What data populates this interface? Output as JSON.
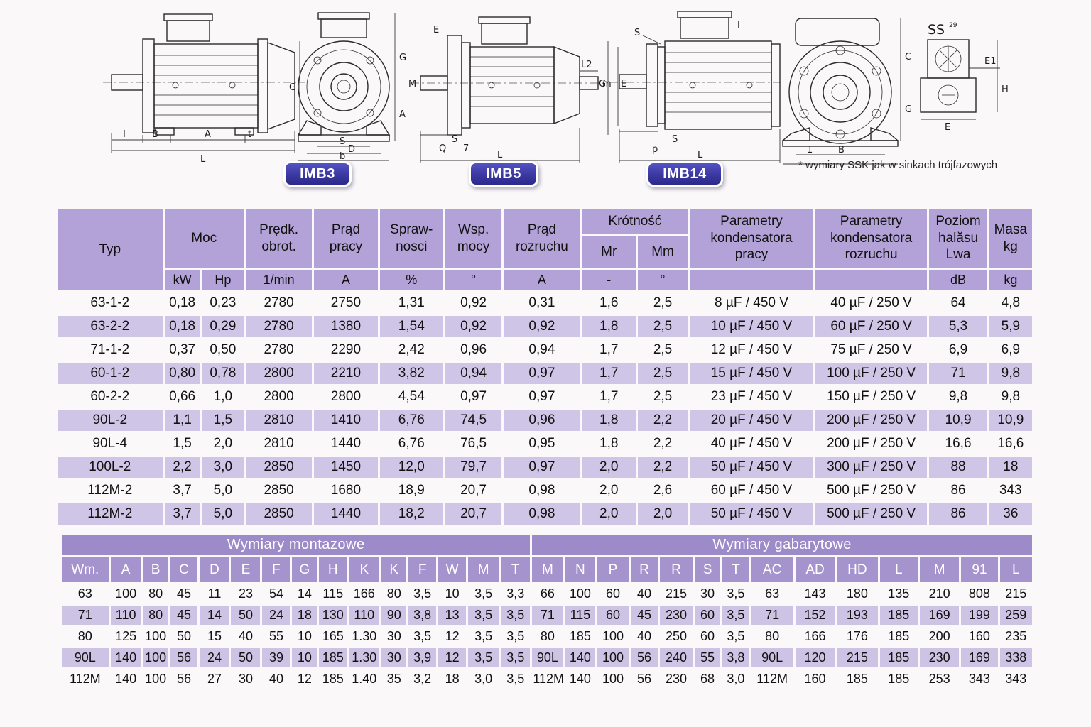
{
  "colors": {
    "page_bg": "#faf8f9",
    "header_purple": "#b2a2d7",
    "row_purple": "#cfc5e6",
    "section_purple": "#9d8ac8",
    "column_letter_purple": "#a593cd",
    "badge_blue": "#3b38a0"
  },
  "diagrams": {
    "badges": [
      "IMB3",
      "IMB5",
      "IMB14"
    ],
    "footnote": "* wymiary SSK jak w sinkach trójfazowych",
    "imb3_side": {
      "dims": [
        "I",
        "B",
        "A",
        "t",
        "L"
      ]
    },
    "imb3_front": {
      "dims": [
        "G",
        "G",
        "A",
        "S",
        "D",
        "b"
      ]
    },
    "imb5_side": {
      "dims": [
        "E",
        "M",
        "S",
        "Q",
        "7",
        "L",
        "L2",
        "m"
      ]
    },
    "imb14_side": {
      "dims": [
        "I",
        "S",
        "G",
        "E",
        "S",
        "p",
        "L"
      ]
    },
    "flange_front": {
      "dims": [
        "C",
        "G",
        "1",
        "B"
      ]
    },
    "ss_detail": {
      "title": "SS",
      "sup": "29",
      "dims": [
        "E1",
        "E",
        "H"
      ]
    }
  },
  "table1": {
    "group": {
      "typ": "Typ",
      "moc": "Moc",
      "predk": "Prędk.\nobrot.",
      "prad_pracy": "Prąd\npracy",
      "sprawnosci": "Spraw-\nnosci",
      "wsp_mocy": "Wsp.\nmocy",
      "prad_rozruchu": "Prąd\nrozruchu",
      "krotnosc": "Krótność",
      "mr": "Mr",
      "mm": "Mm",
      "kond_pracy": "Parametry\nkondensatora\npracy",
      "kond_rozruchu": "Parametry\nkondensatora\nrozruchu",
      "poziom": "Poziom\nhalăsu\nLwa",
      "masa": "Masa\nkg"
    },
    "units": [
      "kW",
      "Hp",
      "1/min",
      "A",
      "%",
      "°",
      "A",
      "-",
      "°",
      "",
      "",
      "dB",
      "kg"
    ],
    "rows": [
      [
        "63-1-2",
        "0,18",
        "0,23",
        "2780",
        "2750",
        "1,31",
        "0,92",
        "0,31",
        "1,6",
        "2,5",
        "8 µF / 450 V",
        "40 µF / 250 V",
        "64",
        "4,8"
      ],
      [
        "63-2-2",
        "0,18",
        "0,29",
        "2780",
        "1380",
        "1,54",
        "0,92",
        "0,92",
        "1,8",
        "2,5",
        "10 µF / 450 V",
        "60 µF / 250 V",
        "5,3",
        "5,9"
      ],
      [
        "71-1-2",
        "0,37",
        "0,50",
        "2780",
        "2290",
        "2,42",
        "0,96",
        "0,94",
        "1,7",
        "2,5",
        "12 µF / 450 V",
        "75 µF / 250 V",
        "6,9",
        "6,9"
      ],
      [
        "60-1-2",
        "0,80",
        "0,78",
        "2800",
        "2210",
        "3,82",
        "0,94",
        "0,97",
        "1,7",
        "2,5",
        "15 µF / 450 V",
        "100 µF / 250 V",
        "71",
        "9,8"
      ],
      [
        "60-2-2",
        "0,66",
        "1,0",
        "2800",
        "2800",
        "4,54",
        "0,97",
        "0,97",
        "1,7",
        "2,5",
        "23 µF / 450 V",
        "150 µF / 250 V",
        "9,8",
        "9,8"
      ],
      [
        "90L-2",
        "1,1",
        "1,5",
        "2810",
        "1410",
        "6,76",
        "74,5",
        "0,96",
        "1,8",
        "2,2",
        "20 µF / 450 V",
        "200 µF / 250 V",
        "10,9",
        "10,9"
      ],
      [
        "90L-4",
        "1,5",
        "2,0",
        "2810",
        "1440",
        "6,76",
        "76,5",
        "0,95",
        "1,8",
        "2,2",
        "40 µF / 450 V",
        "200 µF / 250 V",
        "16,6",
        "16,6"
      ],
      [
        "100L-2",
        "2,2",
        "3,0",
        "2850",
        "1450",
        "12,0",
        "79,7",
        "0,97",
        "2,0",
        "2,2",
        "50 µF / 450 V",
        "300 µF / 250 V",
        "88",
        "18"
      ],
      [
        "112M-2",
        "3,7",
        "5,0",
        "2850",
        "1680",
        "18,9",
        "20,7",
        "0,98",
        "2,0",
        "2,6",
        "60 µF / 450 V",
        "500 µF / 250 V",
        "86",
        "343"
      ],
      [
        "112M-2",
        "3,7",
        "5,0",
        "2850",
        "1440",
        "18,2",
        "20,7",
        "0,98",
        "2,0",
        "2,0",
        "50 µF / 450 V",
        "500 µF / 250 V",
        "86",
        "36"
      ]
    ]
  },
  "table2": {
    "section_left": "Wymiary montazowe",
    "section_right": "Wymiary gabarytowe",
    "cols": [
      "Wm.",
      "A",
      "B",
      "C",
      "D",
      "E",
      "F",
      "G",
      "H",
      "K",
      "K",
      "F",
      "W",
      "M",
      "T",
      "M",
      "N",
      "P",
      "R",
      "R",
      "S",
      "T",
      "AC",
      "AD",
      "HD",
      "L",
      "M",
      "91",
      "L"
    ],
    "rows": [
      [
        "63",
        "100",
        "80",
        "45",
        "11",
        "23",
        "54",
        "14",
        "115",
        "166",
        "80",
        "3,5",
        "10",
        "3,5",
        "3,3",
        "66",
        "100",
        "60",
        "40",
        "215",
        "30",
        "3,5",
        "63",
        "143",
        "180",
        "135",
        "210",
        "808",
        "215"
      ],
      [
        "71",
        "110",
        "80",
        "45",
        "14",
        "50",
        "24",
        "18",
        "130",
        "110",
        "90",
        "3,8",
        "13",
        "3,5",
        "3,5",
        "71",
        "115",
        "60",
        "45",
        "230",
        "60",
        "3,5",
        "71",
        "152",
        "193",
        "185",
        "169",
        "199",
        "259"
      ],
      [
        "80",
        "125",
        "100",
        "50",
        "15",
        "40",
        "55",
        "10",
        "165",
        "1.30",
        "30",
        "3,5",
        "12",
        "3,5",
        "3,5",
        "80",
        "185",
        "100",
        "40",
        "250",
        "60",
        "3,5",
        "80",
        "166",
        "176",
        "185",
        "200",
        "160",
        "235"
      ],
      [
        "90L",
        "140",
        "100",
        "56",
        "24",
        "50",
        "39",
        "10",
        "185",
        "1.30",
        "30",
        "3,9",
        "12",
        "3,5",
        "3,5",
        "90L",
        "140",
        "100",
        "56",
        "240",
        "55",
        "3,8",
        "90L",
        "120",
        "215",
        "185",
        "230",
        "169",
        "338"
      ],
      [
        "112M",
        "140",
        "100",
        "56",
        "27",
        "30",
        "40",
        "12",
        "185",
        "1.40",
        "35",
        "3,2",
        "18",
        "3,0",
        "3,5",
        "112M",
        "140",
        "100",
        "56",
        "230",
        "68",
        "3,0",
        "112M",
        "160",
        "185",
        "185",
        "253",
        "343",
        "343"
      ]
    ]
  }
}
